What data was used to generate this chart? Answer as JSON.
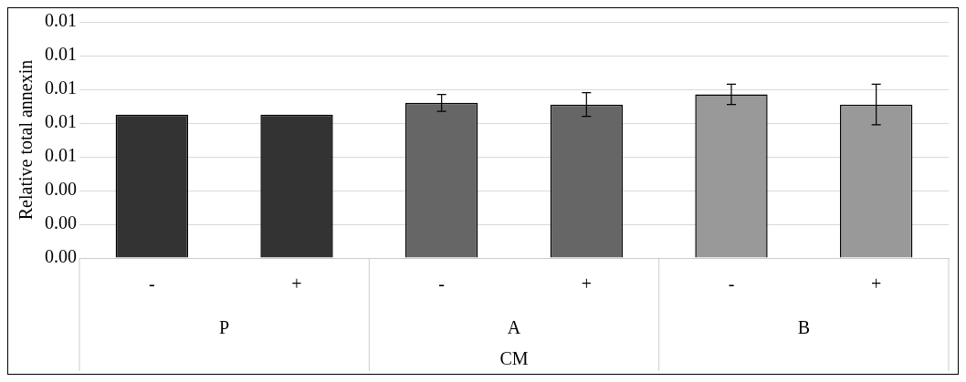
{
  "chart_data": {
    "type": "bar",
    "ylabel": "Relative total annexin",
    "xlabel": "CM",
    "categories": [
      "-",
      "+",
      "-",
      "+",
      "-",
      "+"
    ],
    "values": [
      0.0085,
      0.0085,
      0.0092,
      0.0091,
      0.0097,
      0.0091
    ],
    "colors": [
      "#333333",
      "#333333",
      "#666666",
      "#666666",
      "#999999",
      "#999999"
    ],
    "errors": [
      null,
      null,
      0.0005,
      0.0007,
      0.0006,
      0.0012
    ],
    "annotations": [
      "P",
      "A",
      "B"
    ],
    "ylim": [
      0,
      0.014
    ],
    "yticks": [
      {
        "value": 0,
        "label": "0.00"
      },
      {
        "value": 0.002,
        "label": "0.00"
      },
      {
        "value": 0.004,
        "label": "0.00"
      },
      {
        "value": 0.006,
        "label": "0.01"
      },
      {
        "value": 0.008,
        "label": "0.01"
      },
      {
        "value": 0.01,
        "label": "0.01"
      },
      {
        "value": 0.012,
        "label": "0.01"
      },
      {
        "value": 0.014,
        "label": "0.01"
      }
    ],
    "grid": "y",
    "legend": false
  }
}
